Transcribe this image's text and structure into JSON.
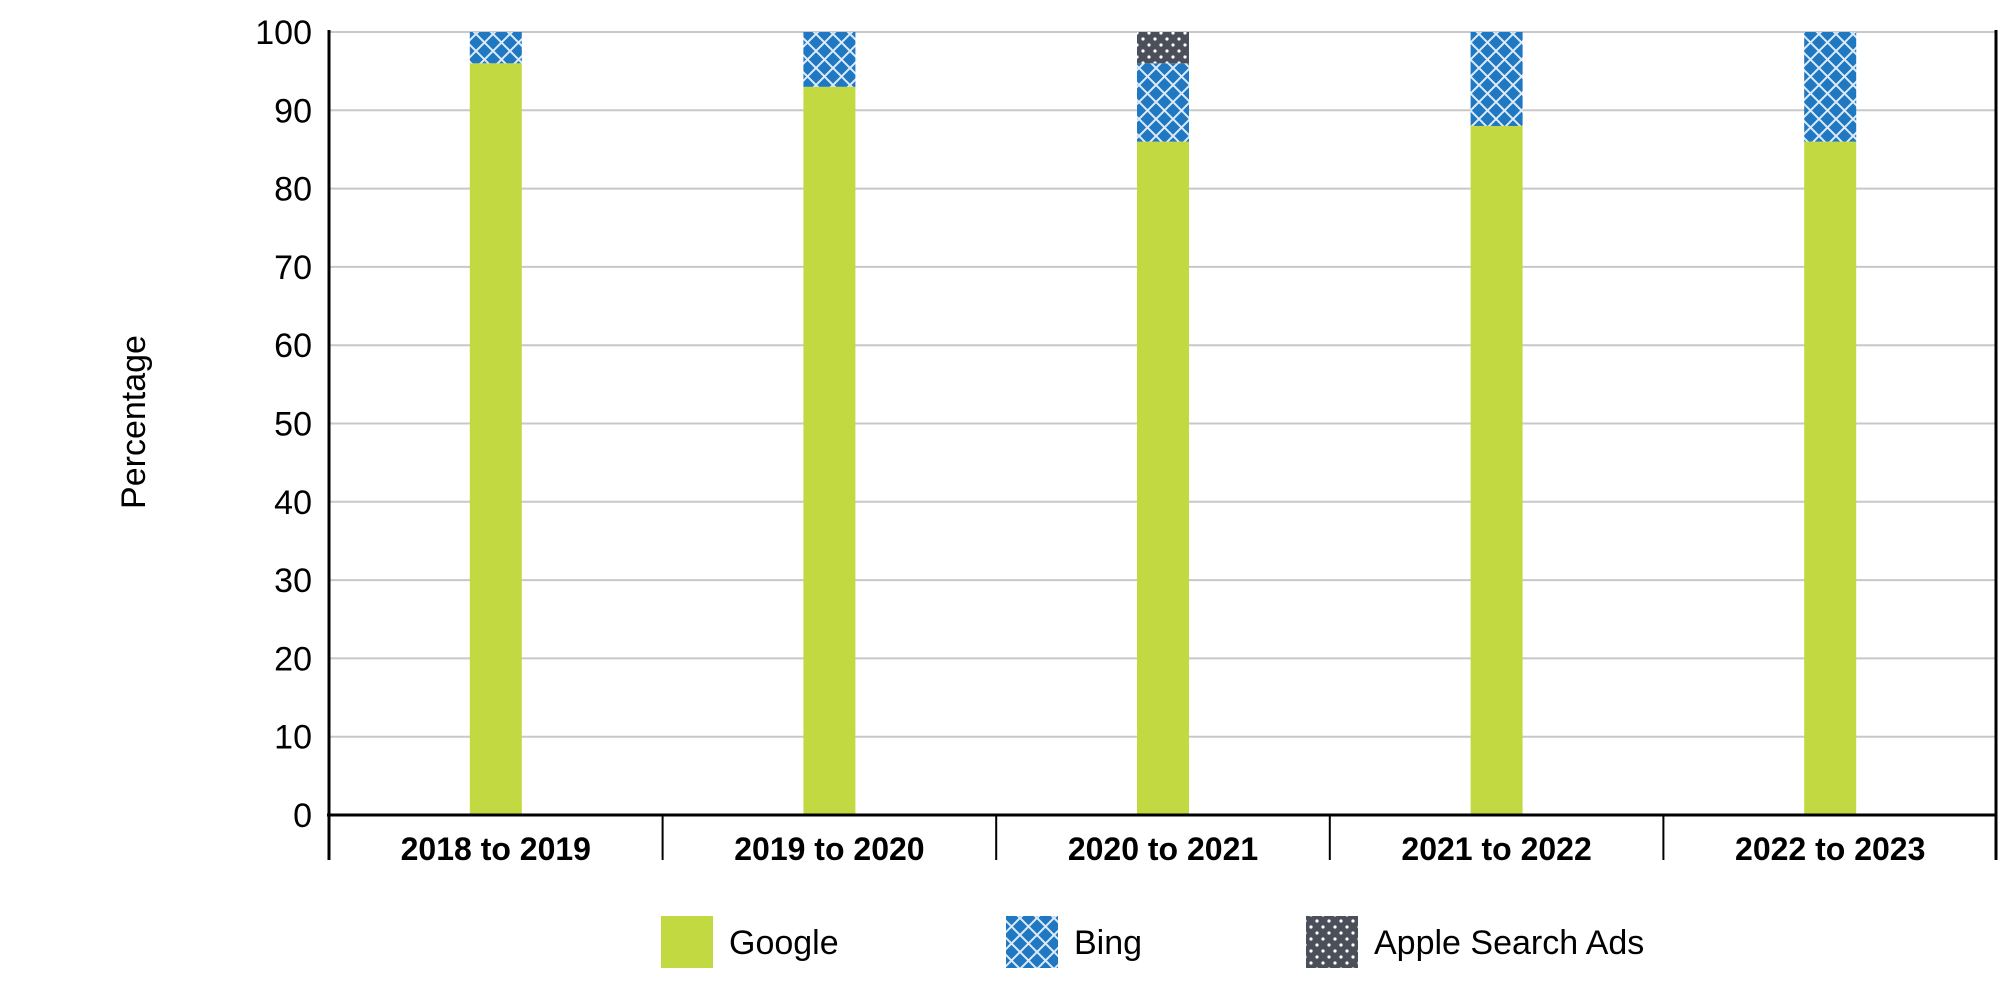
{
  "chart_data": {
    "type": "bar",
    "stacked": true,
    "title": "",
    "xlabel": "",
    "ylabel": "Percentage",
    "ylim": [
      0,
      100
    ],
    "yticks": [
      0,
      10,
      20,
      30,
      40,
      50,
      60,
      70,
      80,
      90,
      100
    ],
    "grid": true,
    "legend_position": "bottom",
    "categories": [
      "2018 to 2019",
      "2019 to 2020",
      "2020 to 2021",
      "2021 to 2022",
      "2022 to 2023"
    ],
    "series": [
      {
        "name": "Google",
        "values": [
          96,
          93,
          86,
          88,
          86
        ],
        "color": "#c3d941",
        "pattern": "solid"
      },
      {
        "name": "Bing",
        "values": [
          4,
          7,
          10,
          12,
          14
        ],
        "color": "#1f78c1",
        "pattern": "crosshatch"
      },
      {
        "name": "Apple Search Ads",
        "values": [
          0,
          0,
          4,
          0,
          0
        ],
        "color": "#4a4f5a",
        "pattern": "dots"
      }
    ]
  }
}
